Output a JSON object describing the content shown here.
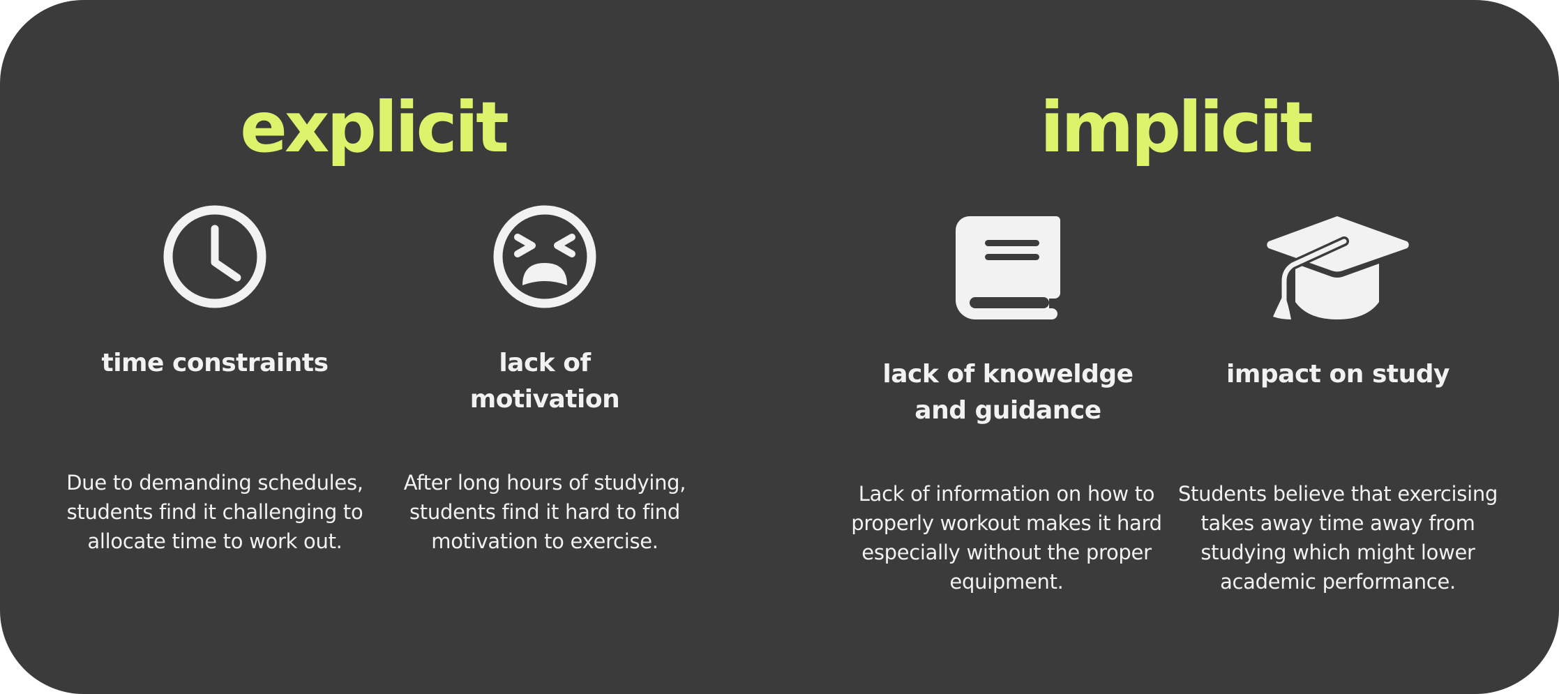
{
  "sections": {
    "explicit": {
      "title": "explicit",
      "items": [
        {
          "icon": "clock-icon",
          "heading": "time constraints",
          "description": "Due to demanding schedules, students find it challenging to allocate time to work out."
        },
        {
          "icon": "tired-face-icon",
          "heading": "lack of motivation",
          "description": "After long hours of studying, students find it hard to find motivation to exercise."
        }
      ]
    },
    "implicit": {
      "title": "implicit",
      "items": [
        {
          "icon": "book-icon",
          "heading": "lack of knoweldge and guidance",
          "description": "Lack of information on how to properly workout makes it hard especially without the proper equipment."
        },
        {
          "icon": "graduation-cap-icon",
          "heading": "impact on study",
          "description": "Students believe that exercising takes away time away from studying which might lower academic performance."
        }
      ]
    }
  },
  "colors": {
    "background": "#3c3b3c",
    "accent": "#dcf36b",
    "text": "#f2f2f2"
  }
}
